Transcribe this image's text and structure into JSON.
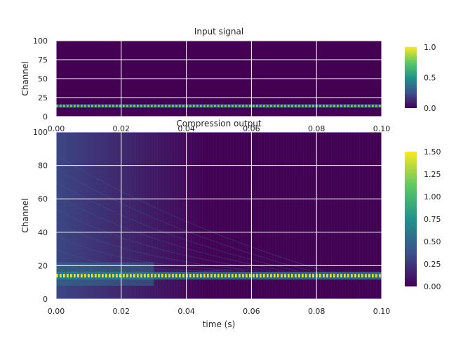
{
  "chart_data": [
    {
      "type": "heatmap",
      "title": "Input signal",
      "xlabel": "",
      "ylabel": "Channel",
      "xlim": [
        0.0,
        0.1
      ],
      "ylim": [
        0,
        100
      ],
      "xticks": [
        "0.00",
        "0.02",
        "0.04",
        "0.06",
        "0.08",
        "0.10"
      ],
      "yticks": [
        "0",
        "25",
        "50",
        "75",
        "100"
      ],
      "grid": true,
      "colormap": "viridis",
      "colorbar": {
        "min": 0.0,
        "max": 1.0,
        "ticks": [
          "0.0",
          "0.5",
          "1.0"
        ]
      },
      "features": [
        {
          "name": "tone band",
          "channel": 14,
          "x_start": 0.0,
          "x_end": 0.1,
          "value": 0.8
        }
      ]
    },
    {
      "type": "heatmap",
      "title": "Compression output",
      "xlabel": "time (s)",
      "ylabel": "Channel",
      "xlim": [
        0.0,
        0.1
      ],
      "ylim": [
        0,
        100
      ],
      "xticks": [
        "0.00",
        "0.02",
        "0.04",
        "0.06",
        "0.08",
        "0.10"
      ],
      "yticks": [
        "0",
        "20",
        "40",
        "60",
        "80",
        "100"
      ],
      "grid": true,
      "colormap": "viridis",
      "colorbar": {
        "min": 0.0,
        "max": 1.5,
        "ticks": [
          "0.00",
          "0.25",
          "0.50",
          "0.75",
          "1.00",
          "1.25",
          "1.50"
        ]
      },
      "features": [
        {
          "name": "compressed band",
          "channel": 14,
          "x_start": 0.0,
          "x_end": 0.1,
          "value": 1.45
        },
        {
          "name": "onset transient",
          "channel_range": [
            0,
            100
          ],
          "x_start": 0.0,
          "x_end": 0.02,
          "value": 0.4
        }
      ]
    }
  ],
  "colors": {
    "viridis": [
      "#440154",
      "#3b528b",
      "#21918c",
      "#5ec962",
      "#fde725"
    ],
    "background_level": "#440154",
    "grid": "#ffffff",
    "text": "#262626"
  }
}
